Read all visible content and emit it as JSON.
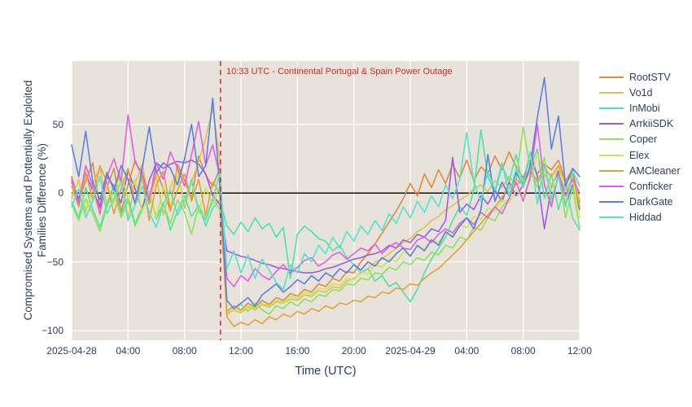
{
  "figure": {
    "bg": "#ffffff",
    "plot_bg": "#e7e3da",
    "grid_color": "#ffffff",
    "zero_line_color": "#000000",
    "text_color": "#2a3f5f"
  },
  "chart_data": {
    "type": "line",
    "title": "",
    "xlabel": "Time (UTC)",
    "ylabel": "Compromised Systems and Pottentially Exploited Families Difference (%)",
    "ylabel_lines": [
      "Compromised Systems and Pottentially Exploited",
      "Families Difference (%)"
    ],
    "x_start": "2025-04-28 00:00 UTC",
    "x_step_hours": 0.5,
    "xlim": [
      0,
      36
    ],
    "ylim": [
      -107,
      96
    ],
    "grid": true,
    "legend_position": "right",
    "x_ticks": [
      {
        "h": 0,
        "label": "2025-04-28"
      },
      {
        "h": 4,
        "label": "04:00"
      },
      {
        "h": 8,
        "label": "08:00"
      },
      {
        "h": 12,
        "label": "12:00"
      },
      {
        "h": 16,
        "label": "16:00"
      },
      {
        "h": 20,
        "label": "20:00"
      },
      {
        "h": 24,
        "label": "2025-04-29"
      },
      {
        "h": 28,
        "label": "04:00"
      },
      {
        "h": 32,
        "label": "08:00"
      },
      {
        "h": 36,
        "label": "12:00"
      }
    ],
    "y_ticks": [
      {
        "v": 50,
        "label": "50"
      },
      {
        "v": 0,
        "label": "0"
      },
      {
        "v": -50,
        "label": "−50"
      },
      {
        "v": -100,
        "label": "−100"
      }
    ],
    "event": {
      "time_hours": 10.55,
      "time_label": "10:33 UTC",
      "label": "10:33 UTC - Continental Portugal & Spain Power Outage",
      "color": "#d62728",
      "line_style": "dashed"
    },
    "series": [
      {
        "name": "RootSTV",
        "color": "#e08b3e",
        "values": [
          12,
          -6,
          9,
          22,
          -11,
          4,
          18,
          -14,
          6,
          24,
          11,
          -8,
          16,
          3,
          -13,
          21,
          9,
          -4,
          27,
          13,
          5,
          18,
          -86,
          -82,
          -85,
          -80,
          -83,
          -78,
          -81,
          -76,
          -78,
          -73,
          -75,
          -70,
          -72,
          -66,
          -68,
          -62,
          -64,
          -57,
          -58,
          -50,
          -44,
          -37,
          -29,
          -21,
          -13,
          -4,
          7,
          -2,
          14,
          4,
          17,
          7,
          21,
          11,
          24,
          9,
          19,
          14,
          27,
          17,
          30,
          19,
          11,
          24,
          14,
          21,
          17,
          24,
          9,
          17,
          -7
        ]
      },
      {
        "name": "Vo1d",
        "color": "#dfc04b",
        "values": [
          -4,
          10,
          -14,
          6,
          19,
          -9,
          2,
          15,
          -18,
          7,
          21,
          -6,
          12,
          -16,
          4,
          17,
          -11,
          8,
          23,
          40,
          62,
          24,
          -88,
          -85,
          -87,
          -83,
          -85,
          -81,
          -83,
          -79,
          -80,
          -77,
          -78,
          -74,
          -75,
          -71,
          -72,
          -68,
          -69,
          -64,
          -62,
          -58,
          -55,
          -50,
          -48,
          -44,
          -40,
          -36,
          -33,
          -28,
          -25,
          -20,
          -17,
          -12,
          -9,
          -5,
          -2,
          3,
          6,
          1,
          9,
          4,
          12,
          6,
          10,
          15,
          8,
          13,
          6,
          16,
          2,
          11,
          -5
        ]
      },
      {
        "name": "InMobi",
        "color": "#4ee3a4",
        "values": [
          -6,
          -18,
          4,
          -12,
          -25,
          -8,
          6,
          -16,
          -3,
          -22,
          -10,
          2,
          -19,
          -7,
          -27,
          -13,
          -2,
          -17,
          -9,
          -24,
          -11,
          -5,
          -24,
          -30,
          -21,
          -28,
          -18,
          -26,
          -22,
          -32,
          -25,
          -62,
          -30,
          -24,
          -28,
          -33,
          -35,
          -42,
          -38,
          -47,
          -52,
          -58,
          -55,
          -64,
          -60,
          -68,
          -65,
          -72,
          -79,
          -70,
          -58,
          -48,
          -40,
          -32,
          -20,
          -10,
          -16,
          2,
          46,
          12,
          0,
          20,
          8,
          28,
          5,
          18,
          32,
          -4,
          14,
          -12,
          8,
          -18,
          -27
        ]
      },
      {
        "name": "ArrkiiSDK",
        "color": "#9a5de6",
        "values": [
          8,
          -4,
          14,
          2,
          -10,
          12,
          5,
          -7,
          16,
          3,
          -12,
          9,
          22,
          18,
          21,
          23,
          22,
          24,
          21,
          14,
          -2,
          -8,
          -42,
          -44,
          -46,
          -47,
          -49,
          -51,
          -52,
          -54,
          -55,
          -56,
          -57,
          -58,
          -58,
          -57,
          -55,
          -54,
          -52,
          -50,
          -48,
          -47,
          -45,
          -44,
          -42,
          -38,
          -40,
          -34,
          -36,
          -30,
          -32,
          -26,
          -28,
          -20,
          26,
          -14,
          -8,
          -12,
          -2,
          -8,
          2,
          -6,
          8,
          -2,
          6,
          30,
          12,
          -26,
          4,
          16,
          -8,
          6,
          -12
        ]
      },
      {
        "name": "Coper",
        "color": "#8ce35b",
        "values": [
          -8,
          -20,
          -4,
          -15,
          -28,
          -10,
          2,
          -18,
          -6,
          -24,
          -12,
          -2,
          -16,
          -8,
          -22,
          -5,
          -14,
          -30,
          -9,
          -18,
          -4,
          -12,
          -78,
          -84,
          -81,
          -86,
          -80,
          -85,
          -88,
          -82,
          -84,
          -79,
          -82,
          -77,
          -79,
          -74,
          -75,
          -70,
          -71,
          -66,
          -67,
          -62,
          -63,
          -58,
          -59,
          -54,
          -56,
          -50,
          -52,
          -47,
          -49,
          -43,
          -45,
          -38,
          -40,
          -32,
          -34,
          -25,
          -27,
          -18,
          -20,
          -10,
          -4,
          10,
          48,
          18,
          4,
          26,
          -8,
          14,
          -18,
          4,
          -25
        ]
      },
      {
        "name": "Elex",
        "color": "#c8e64f",
        "values": [
          -2,
          8,
          -12,
          3,
          -16,
          6,
          -8,
          14,
          -4,
          10,
          -14,
          2,
          -18,
          5,
          -10,
          12,
          -6,
          9,
          -15,
          4,
          -9,
          6,
          -87,
          -83,
          -86,
          -82,
          -84,
          -80,
          -82,
          -78,
          -79,
          -75,
          -77,
          -72,
          -74,
          -69,
          -70,
          -66,
          -67,
          -62,
          -63,
          -57,
          -59,
          -52,
          -54,
          -48,
          -50,
          -43,
          -45,
          -39,
          -41,
          -34,
          -36,
          -29,
          -31,
          -23,
          -25,
          -17,
          -19,
          -11,
          -13,
          -5,
          -7,
          2,
          -2,
          9,
          28,
          15,
          2,
          20,
          -6,
          10,
          -18
        ]
      },
      {
        "name": "AMCleaner",
        "color": "#e0a33b",
        "values": [
          5,
          -10,
          15,
          -5,
          20,
          8,
          -15,
          3,
          18,
          -8,
          12,
          -20,
          6,
          16,
          -12,
          2,
          14,
          -6,
          10,
          -16,
          8,
          0,
          -90,
          -97,
          -94,
          -96,
          -92,
          -95,
          -90,
          -92,
          -88,
          -90,
          -86,
          -88,
          -84,
          -86,
          -82,
          -84,
          -80,
          -81,
          -78,
          -79,
          -75,
          -76,
          -72,
          -73,
          -69,
          -70,
          -66,
          -67,
          -62,
          -58,
          -55,
          -50,
          -45,
          -40,
          -34,
          -28,
          -22,
          -16,
          -10,
          -3,
          4,
          10,
          6,
          16,
          9,
          18,
          12,
          20,
          7,
          14,
          -10
        ]
      },
      {
        "name": "Conficker",
        "color": "#e35fe1",
        "values": [
          10,
          -8,
          20,
          5,
          -15,
          12,
          25,
          8,
          57,
          22,
          15,
          -5,
          22,
          10,
          30,
          18,
          5,
          28,
          52,
          20,
          35,
          12,
          -62,
          -68,
          -60,
          -64,
          -55,
          -60,
          -63,
          -57,
          -52,
          -58,
          -54,
          -49,
          -47,
          -53,
          -50,
          -45,
          -43,
          -48,
          -44,
          -40,
          -42,
          -37,
          -44,
          -39,
          -36,
          -40,
          -41,
          -34,
          -32,
          -36,
          -30,
          -26,
          -29,
          -22,
          -18,
          -23,
          -14,
          -18,
          -10,
          -15,
          -4,
          8,
          -6,
          12,
          50,
          6,
          -10,
          14,
          -2,
          10,
          0
        ]
      },
      {
        "name": "DarkGate",
        "color": "#5b80e3",
        "values": [
          35,
          12,
          45,
          8,
          -5,
          15,
          2,
          20,
          10,
          -8,
          18,
          48,
          15,
          22,
          18,
          6,
          25,
          50,
          12,
          20,
          69,
          5,
          -78,
          -84,
          -80,
          -76,
          -82,
          -74,
          -70,
          -66,
          -72,
          -68,
          -63,
          -66,
          -60,
          -64,
          -58,
          -61,
          -55,
          -58,
          -52,
          -56,
          -50,
          -53,
          -47,
          -50,
          -44,
          -40,
          -46,
          -38,
          -42,
          -34,
          -38,
          -28,
          -32,
          -24,
          -18,
          -26,
          -12,
          28,
          -6,
          8,
          -2,
          15,
          5,
          20,
          55,
          84,
          32,
          56,
          5,
          18,
          12
        ]
      },
      {
        "name": "Hiddad",
        "color": "#54e3cb",
        "values": [
          -10,
          3,
          -18,
          -6,
          12,
          -15,
          -4,
          8,
          -20,
          -9,
          5,
          -14,
          -25,
          -8,
          2,
          -16,
          -6,
          10,
          -12,
          -20,
          -5,
          15,
          -55,
          -42,
          -58,
          -45,
          -62,
          -48,
          -56,
          -65,
          -70,
          -52,
          -58,
          -44,
          -50,
          -38,
          -44,
          -32,
          -40,
          -28,
          -35,
          -24,
          -30,
          -20,
          -27,
          -15,
          -22,
          -10,
          -18,
          -6,
          -14,
          -2,
          -10,
          6,
          -4,
          10,
          44,
          8,
          -6,
          16,
          2,
          22,
          -2,
          18,
          4,
          30,
          -8,
          20,
          -4,
          12,
          -10,
          16,
          5
        ]
      }
    ]
  }
}
